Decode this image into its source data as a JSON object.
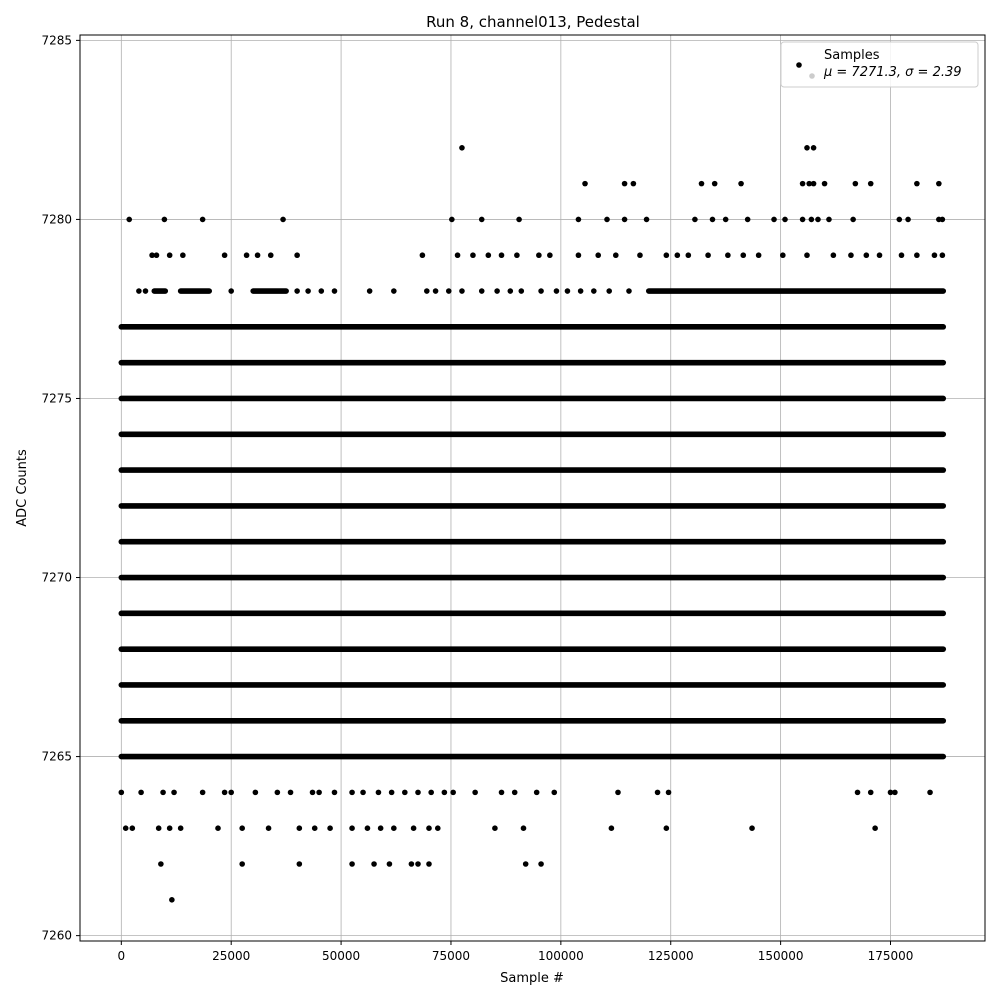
{
  "chart_data": {
    "type": "scatter",
    "title": "Run 8, channel013, Pedestal",
    "xlabel": "Sample #",
    "ylabel": "ADC Counts",
    "xlim": [
      -9400,
      196500
    ],
    "ylim": [
      7259.85,
      7285.15
    ],
    "xticks": [
      0,
      25000,
      50000,
      75000,
      100000,
      125000,
      150000,
      175000
    ],
    "yticks": [
      7260,
      7265,
      7270,
      7275,
      7280,
      7285
    ],
    "grid": true,
    "legend_position": "top-right",
    "series": [
      {
        "name": "Samples",
        "color": "#000000",
        "n_samples": 187500,
        "bands": [
          {
            "y": 7265,
            "x_ranges": [
              [
                0,
                187000
              ]
            ]
          },
          {
            "y": 7266,
            "x_ranges": [
              [
                0,
                187000
              ]
            ]
          },
          {
            "y": 7267,
            "x_ranges": [
              [
                0,
                187000
              ]
            ]
          },
          {
            "y": 7268,
            "x_ranges": [
              [
                0,
                187000
              ]
            ]
          },
          {
            "y": 7269,
            "x_ranges": [
              [
                0,
                187000
              ]
            ]
          },
          {
            "y": 7270,
            "x_ranges": [
              [
                0,
                187000
              ]
            ]
          },
          {
            "y": 7271,
            "x_ranges": [
              [
                0,
                187000
              ]
            ]
          },
          {
            "y": 7272,
            "x_ranges": [
              [
                0,
                187000
              ]
            ]
          },
          {
            "y": 7273,
            "x_ranges": [
              [
                0,
                187000
              ]
            ]
          },
          {
            "y": 7274,
            "x_ranges": [
              [
                0,
                187000
              ]
            ]
          },
          {
            "y": 7275,
            "x_ranges": [
              [
                0,
                187000
              ]
            ]
          },
          {
            "y": 7276,
            "x_ranges": [
              [
                0,
                187000
              ]
            ]
          },
          {
            "y": 7277,
            "x_ranges": [
              [
                0,
                187000
              ]
            ]
          },
          {
            "y": 7278,
            "x_ranges": [
              [
                7500,
                10000
              ],
              [
                13500,
                20000
              ],
              [
                30000,
                37500
              ],
              [
                120000,
                187000
              ]
            ]
          }
        ],
        "points": [
          [
            1800,
            7280
          ],
          [
            9800,
            7280
          ],
          [
            18500,
            7280
          ],
          [
            36800,
            7280
          ],
          [
            75200,
            7280
          ],
          [
            82000,
            7280
          ],
          [
            90500,
            7280
          ],
          [
            104000,
            7280
          ],
          [
            110500,
            7280
          ],
          [
            114500,
            7280
          ],
          [
            119500,
            7280
          ],
          [
            130500,
            7280
          ],
          [
            134500,
            7280
          ],
          [
            137500,
            7280
          ],
          [
            142500,
            7280
          ],
          [
            148500,
            7280
          ],
          [
            151000,
            7280
          ],
          [
            155000,
            7280
          ],
          [
            157000,
            7280
          ],
          [
            158500,
            7280
          ],
          [
            161000,
            7280
          ],
          [
            166500,
            7280
          ],
          [
            177000,
            7280
          ],
          [
            179000,
            7280
          ],
          [
            186000,
            7280
          ],
          [
            186800,
            7280
          ],
          [
            7000,
            7279
          ],
          [
            8000,
            7279
          ],
          [
            11000,
            7279
          ],
          [
            14000,
            7279
          ],
          [
            23500,
            7279
          ],
          [
            28500,
            7279
          ],
          [
            31000,
            7279
          ],
          [
            34000,
            7279
          ],
          [
            40000,
            7279
          ],
          [
            68500,
            7279
          ],
          [
            76500,
            7279
          ],
          [
            80000,
            7279
          ],
          [
            83500,
            7279
          ],
          [
            86500,
            7279
          ],
          [
            90000,
            7279
          ],
          [
            95000,
            7279
          ],
          [
            97500,
            7279
          ],
          [
            104000,
            7279
          ],
          [
            108500,
            7279
          ],
          [
            112500,
            7279
          ],
          [
            118000,
            7279
          ],
          [
            124000,
            7279
          ],
          [
            126500,
            7279
          ],
          [
            129000,
            7279
          ],
          [
            133500,
            7279
          ],
          [
            138000,
            7279
          ],
          [
            141500,
            7279
          ],
          [
            145000,
            7279
          ],
          [
            150500,
            7279
          ],
          [
            156000,
            7279
          ],
          [
            162000,
            7279
          ],
          [
            166000,
            7279
          ],
          [
            169500,
            7279
          ],
          [
            172500,
            7279
          ],
          [
            177500,
            7279
          ],
          [
            181000,
            7279
          ],
          [
            185000,
            7279
          ],
          [
            186800,
            7279
          ],
          [
            4000,
            7278
          ],
          [
            5500,
            7278
          ],
          [
            25000,
            7278
          ],
          [
            40000,
            7278
          ],
          [
            42500,
            7278
          ],
          [
            45500,
            7278
          ],
          [
            48500,
            7278
          ],
          [
            56500,
            7278
          ],
          [
            62000,
            7278
          ],
          [
            69500,
            7278
          ],
          [
            71500,
            7278
          ],
          [
            74500,
            7278
          ],
          [
            77500,
            7278
          ],
          [
            82000,
            7278
          ],
          [
            85500,
            7278
          ],
          [
            88500,
            7278
          ],
          [
            91000,
            7278
          ],
          [
            95500,
            7278
          ],
          [
            99000,
            7278
          ],
          [
            101500,
            7278
          ],
          [
            104500,
            7278
          ],
          [
            107500,
            7278
          ],
          [
            111000,
            7278
          ],
          [
            115500,
            7278
          ],
          [
            0,
            7264
          ],
          [
            4500,
            7264
          ],
          [
            9500,
            7264
          ],
          [
            12000,
            7264
          ],
          [
            18500,
            7264
          ],
          [
            23500,
            7264
          ],
          [
            25000,
            7264
          ],
          [
            30500,
            7264
          ],
          [
            35500,
            7264
          ],
          [
            38500,
            7264
          ],
          [
            43500,
            7264
          ],
          [
            45000,
            7264
          ],
          [
            48500,
            7264
          ],
          [
            52500,
            7264
          ],
          [
            55000,
            7264
          ],
          [
            58500,
            7264
          ],
          [
            61500,
            7264
          ],
          [
            64500,
            7264
          ],
          [
            67500,
            7264
          ],
          [
            70500,
            7264
          ],
          [
            73500,
            7264
          ],
          [
            75500,
            7264
          ],
          [
            80500,
            7264
          ],
          [
            86500,
            7264
          ],
          [
            89500,
            7264
          ],
          [
            94500,
            7264
          ],
          [
            98500,
            7264
          ],
          [
            113000,
            7264
          ],
          [
            122000,
            7264
          ],
          [
            124500,
            7264
          ],
          [
            167500,
            7264
          ],
          [
            170500,
            7264
          ],
          [
            175000,
            7264
          ],
          [
            176000,
            7264
          ],
          [
            184000,
            7264
          ],
          [
            1000,
            7263
          ],
          [
            2500,
            7263
          ],
          [
            8500,
            7263
          ],
          [
            11000,
            7263
          ],
          [
            13500,
            7263
          ],
          [
            22000,
            7263
          ],
          [
            27500,
            7263
          ],
          [
            33500,
            7263
          ],
          [
            40500,
            7263
          ],
          [
            44000,
            7263
          ],
          [
            47500,
            7263
          ],
          [
            52500,
            7263
          ],
          [
            56000,
            7263
          ],
          [
            59000,
            7263
          ],
          [
            62000,
            7263
          ],
          [
            66500,
            7263
          ],
          [
            70000,
            7263
          ],
          [
            72000,
            7263
          ],
          [
            85000,
            7263
          ],
          [
            91500,
            7263
          ],
          [
            111500,
            7263
          ],
          [
            124000,
            7263
          ],
          [
            143500,
            7263
          ],
          [
            171500,
            7263
          ],
          [
            9000,
            7262
          ],
          [
            27500,
            7262
          ],
          [
            40500,
            7262
          ],
          [
            52500,
            7262
          ],
          [
            57500,
            7262
          ],
          [
            61000,
            7262
          ],
          [
            66000,
            7262
          ],
          [
            67500,
            7262
          ],
          [
            70000,
            7262
          ],
          [
            92000,
            7262
          ],
          [
            95500,
            7262
          ],
          [
            11500,
            7261
          ],
          [
            77500,
            7282
          ],
          [
            156000,
            7282
          ],
          [
            157500,
            7282
          ],
          [
            105500,
            7281
          ],
          [
            114500,
            7281
          ],
          [
            116500,
            7281
          ],
          [
            132000,
            7281
          ],
          [
            135000,
            7281
          ],
          [
            141000,
            7281
          ],
          [
            155000,
            7281
          ],
          [
            156500,
            7281
          ],
          [
            157500,
            7281
          ],
          [
            160000,
            7281
          ],
          [
            167000,
            7281
          ],
          [
            170500,
            7281
          ],
          [
            181000,
            7281
          ],
          [
            186000,
            7281
          ]
        ]
      }
    ],
    "legend": {
      "entries": [
        "Samples"
      ],
      "text_line2": "μ = 7271.3, σ = 2.39"
    }
  }
}
